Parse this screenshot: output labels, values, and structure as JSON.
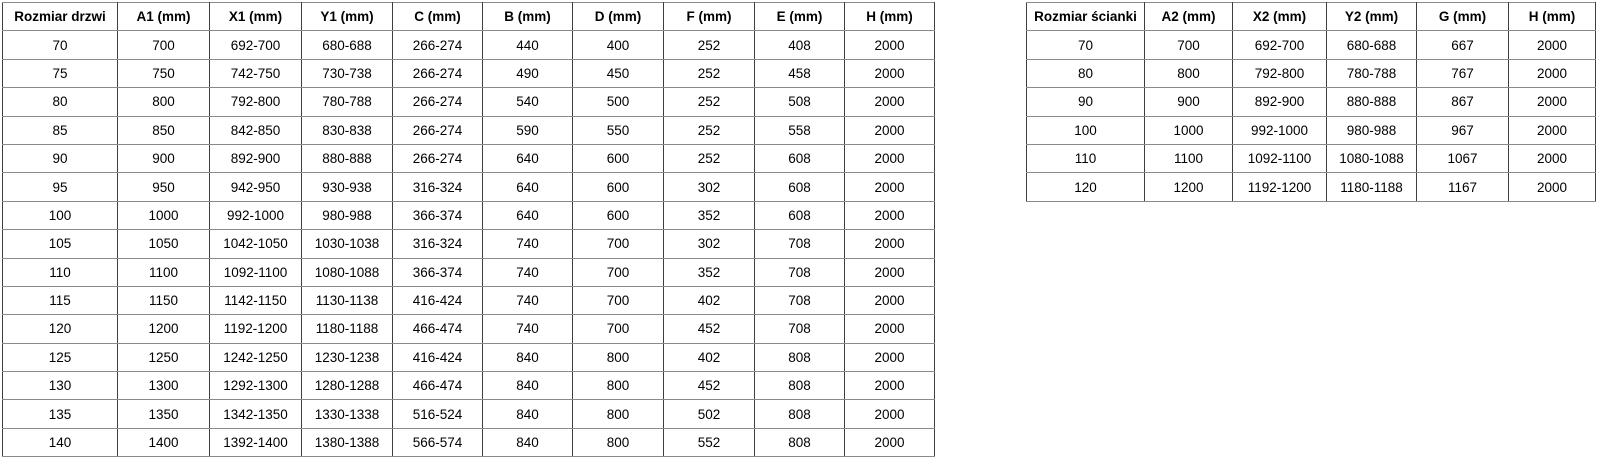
{
  "colors": {
    "background": "#ffffff",
    "text": "#000000",
    "border_vertical": "#3f3f3f",
    "border_horizontal": "#8a8a8a"
  },
  "tables": [
    {
      "name": "door-size-table",
      "headers": [
        "Rozmiar drzwi",
        "A1 (mm)",
        "X1 (mm)",
        "Y1 (mm)",
        "C (mm)",
        "B (mm)",
        "D (mm)",
        "F (mm)",
        "E (mm)",
        "H (mm)"
      ],
      "rows": [
        [
          "70",
          "700",
          "692-700",
          "680-688",
          "266-274",
          "440",
          "400",
          "252",
          "408",
          "2000"
        ],
        [
          "75",
          "750",
          "742-750",
          "730-738",
          "266-274",
          "490",
          "450",
          "252",
          "458",
          "2000"
        ],
        [
          "80",
          "800",
          "792-800",
          "780-788",
          "266-274",
          "540",
          "500",
          "252",
          "508",
          "2000"
        ],
        [
          "85",
          "850",
          "842-850",
          "830-838",
          "266-274",
          "590",
          "550",
          "252",
          "558",
          "2000"
        ],
        [
          "90",
          "900",
          "892-900",
          "880-888",
          "266-274",
          "640",
          "600",
          "252",
          "608",
          "2000"
        ],
        [
          "95",
          "950",
          "942-950",
          "930-938",
          "316-324",
          "640",
          "600",
          "302",
          "608",
          "2000"
        ],
        [
          "100",
          "1000",
          "992-1000",
          "980-988",
          "366-374",
          "640",
          "600",
          "352",
          "608",
          "2000"
        ],
        [
          "105",
          "1050",
          "1042-1050",
          "1030-1038",
          "316-324",
          "740",
          "700",
          "302",
          "708",
          "2000"
        ],
        [
          "110",
          "1100",
          "1092-1100",
          "1080-1088",
          "366-374",
          "740",
          "700",
          "352",
          "708",
          "2000"
        ],
        [
          "115",
          "1150",
          "1142-1150",
          "1130-1138",
          "416-424",
          "740",
          "700",
          "402",
          "708",
          "2000"
        ],
        [
          "120",
          "1200",
          "1192-1200",
          "1180-1188",
          "466-474",
          "740",
          "700",
          "452",
          "708",
          "2000"
        ],
        [
          "125",
          "1250",
          "1242-1250",
          "1230-1238",
          "416-424",
          "840",
          "800",
          "402",
          "808",
          "2000"
        ],
        [
          "130",
          "1300",
          "1292-1300",
          "1280-1288",
          "466-474",
          "840",
          "800",
          "452",
          "808",
          "2000"
        ],
        [
          "135",
          "1350",
          "1342-1350",
          "1330-1338",
          "516-524",
          "840",
          "800",
          "502",
          "808",
          "2000"
        ],
        [
          "140",
          "1400",
          "1392-1400",
          "1380-1388",
          "566-574",
          "840",
          "800",
          "552",
          "808",
          "2000"
        ]
      ]
    },
    {
      "name": "wall-size-table",
      "headers": [
        "Rozmiar ścianki",
        "A2 (mm)",
        "X2 (mm)",
        "Y2 (mm)",
        "G (mm)",
        "H (mm)"
      ],
      "rows": [
        [
          "70",
          "700",
          "692-700",
          "680-688",
          "667",
          "2000"
        ],
        [
          "80",
          "800",
          "792-800",
          "780-788",
          "767",
          "2000"
        ],
        [
          "90",
          "900",
          "892-900",
          "880-888",
          "867",
          "2000"
        ],
        [
          "100",
          "1000",
          "992-1000",
          "980-988",
          "967",
          "2000"
        ],
        [
          "110",
          "1100",
          "1092-1100",
          "1080-1088",
          "1067",
          "2000"
        ],
        [
          "120",
          "1200",
          "1192-1200",
          "1180-1188",
          "1167",
          "2000"
        ]
      ]
    }
  ]
}
